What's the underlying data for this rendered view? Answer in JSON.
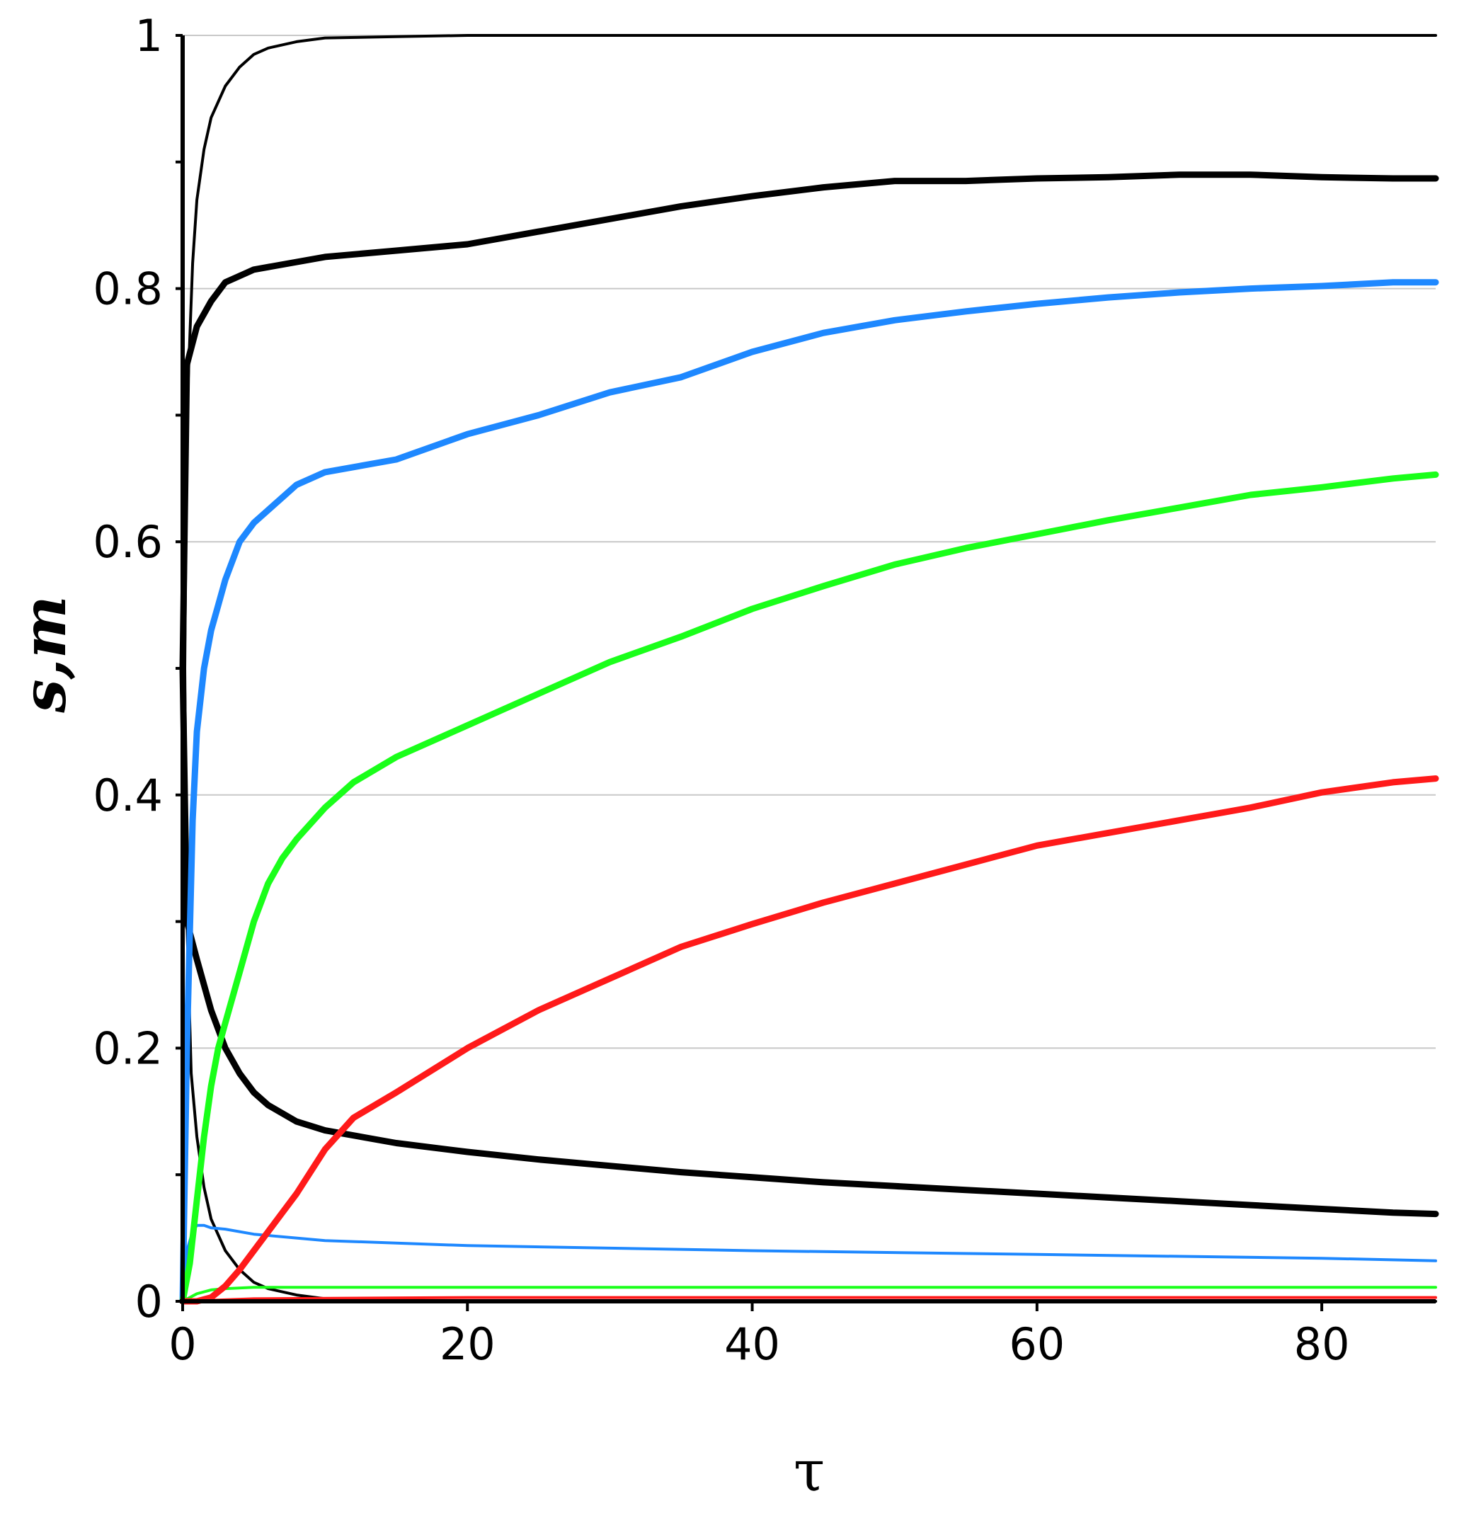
{
  "chart_data": {
    "type": "line",
    "xlabel": "τ",
    "ylabel": "s,m",
    "xlim": [
      0,
      88
    ],
    "ylim": [
      0,
      1
    ],
    "x_ticks": [
      "0",
      "20",
      "40",
      "60",
      "80"
    ],
    "x_tick_values": [
      0,
      20,
      40,
      60,
      80
    ],
    "y_ticks": [
      "0",
      "0.2",
      "0.4",
      "0.6",
      "0.8",
      "1"
    ],
    "y_tick_values": [
      0,
      0.2,
      0.4,
      0.6,
      0.8,
      1
    ],
    "y_minor_ticks": [
      0.1,
      0.3,
      0.5,
      0.7,
      0.9
    ],
    "grid": "horizontal",
    "legend": "none",
    "series": [
      {
        "color": "#000000",
        "weight": "thin",
        "x": [
          0,
          0.3,
          0.7,
          1,
          1.5,
          2,
          3,
          4,
          5,
          6,
          8,
          10,
          15,
          20,
          88
        ],
        "y": [
          0.3,
          0.7,
          0.82,
          0.87,
          0.91,
          0.935,
          0.96,
          0.975,
          0.985,
          0.99,
          0.995,
          0.998,
          0.999,
          1.0,
          1.0
        ]
      },
      {
        "color": "#000000",
        "weight": "thin",
        "x": [
          0,
          0.3,
          0.6,
          1,
          1.5,
          2,
          3,
          4,
          5,
          6,
          8,
          10,
          15,
          20,
          88
        ],
        "y": [
          0.7,
          0.3,
          0.18,
          0.13,
          0.09,
          0.065,
          0.04,
          0.025,
          0.015,
          0.01,
          0.005,
          0.002,
          0.001,
          0.0,
          0.0
        ]
      },
      {
        "color": "#000000",
        "weight": "thick",
        "x": [
          0,
          0.3,
          1,
          2,
          3,
          5,
          10,
          15,
          20,
          25,
          30,
          35,
          40,
          45,
          50,
          55,
          60,
          65,
          70,
          75,
          80,
          85,
          88
        ],
        "y": [
          0.5,
          0.74,
          0.77,
          0.79,
          0.805,
          0.815,
          0.825,
          0.83,
          0.835,
          0.845,
          0.855,
          0.865,
          0.873,
          0.88,
          0.885,
          0.885,
          0.887,
          0.888,
          0.89,
          0.89,
          0.888,
          0.887,
          0.887
        ]
      },
      {
        "color": "#000000",
        "weight": "thick",
        "x": [
          0,
          0.3,
          1,
          2,
          3,
          4,
          5,
          6,
          8,
          10,
          15,
          20,
          25,
          30,
          35,
          40,
          45,
          50,
          55,
          60,
          65,
          70,
          75,
          80,
          85,
          88
        ],
        "y": [
          0.5,
          0.3,
          0.27,
          0.23,
          0.2,
          0.18,
          0.165,
          0.155,
          0.142,
          0.135,
          0.125,
          0.118,
          0.112,
          0.107,
          0.102,
          0.098,
          0.094,
          0.091,
          0.088,
          0.085,
          0.082,
          0.079,
          0.076,
          0.073,
          0.07,
          0.069
        ]
      },
      {
        "color": "#1e88ff",
        "weight": "thick",
        "x": [
          0,
          0.3,
          0.7,
          1,
          1.5,
          2,
          2.5,
          3,
          4,
          5,
          6,
          7,
          8,
          10,
          15,
          20,
          25,
          30,
          35,
          40,
          45,
          50,
          55,
          60,
          65,
          70,
          75,
          80,
          85,
          88
        ],
        "y": [
          0.0,
          0.2,
          0.38,
          0.45,
          0.5,
          0.53,
          0.55,
          0.57,
          0.6,
          0.615,
          0.625,
          0.635,
          0.645,
          0.655,
          0.665,
          0.685,
          0.7,
          0.718,
          0.73,
          0.75,
          0.765,
          0.775,
          0.782,
          0.788,
          0.793,
          0.797,
          0.8,
          0.802,
          0.805,
          0.805
        ]
      },
      {
        "color": "#1e88ff",
        "weight": "thin",
        "x": [
          0,
          0.3,
          0.7,
          1,
          1.5,
          2,
          3,
          5,
          10,
          20,
          40,
          60,
          80,
          88
        ],
        "y": [
          0.0,
          0.04,
          0.055,
          0.06,
          0.06,
          0.058,
          0.057,
          0.053,
          0.048,
          0.044,
          0.04,
          0.037,
          0.034,
          0.032
        ]
      },
      {
        "color": "#1aff1a",
        "weight": "thick",
        "x": [
          0,
          0.5,
          1,
          1.5,
          2,
          2.5,
          3,
          3.5,
          4,
          5,
          6,
          7,
          8,
          10,
          12,
          15,
          20,
          25,
          30,
          35,
          40,
          45,
          50,
          55,
          60,
          65,
          70,
          75,
          80,
          85,
          88
        ],
        "y": [
          0.0,
          0.03,
          0.08,
          0.13,
          0.17,
          0.2,
          0.22,
          0.24,
          0.26,
          0.3,
          0.33,
          0.35,
          0.365,
          0.39,
          0.41,
          0.43,
          0.455,
          0.48,
          0.505,
          0.525,
          0.547,
          0.565,
          0.582,
          0.595,
          0.606,
          0.617,
          0.627,
          0.637,
          0.643,
          0.65,
          0.653
        ]
      },
      {
        "color": "#1aff1a",
        "weight": "thin",
        "x": [
          0,
          1,
          2,
          3,
          5,
          10,
          20,
          40,
          60,
          80,
          88
        ],
        "y": [
          0.0,
          0.006,
          0.009,
          0.01,
          0.011,
          0.011,
          0.011,
          0.011,
          0.011,
          0.011,
          0.011
        ]
      },
      {
        "color": "#ff1a1a",
        "weight": "thick",
        "x": [
          0,
          1,
          2,
          3,
          4,
          5,
          6,
          7,
          8,
          10,
          12,
          15,
          20,
          25,
          30,
          35,
          40,
          45,
          50,
          55,
          60,
          65,
          70,
          75,
          80,
          85,
          88
        ],
        "y": [
          0.0,
          0.0,
          0.003,
          0.012,
          0.025,
          0.04,
          0.055,
          0.07,
          0.085,
          0.12,
          0.145,
          0.165,
          0.2,
          0.23,
          0.255,
          0.28,
          0.298,
          0.315,
          0.33,
          0.345,
          0.36,
          0.37,
          0.38,
          0.39,
          0.402,
          0.41,
          0.413
        ]
      },
      {
        "color": "#ff1a1a",
        "weight": "thin",
        "x": [
          0,
          5,
          20,
          40,
          60,
          80,
          88
        ],
        "y": [
          0.0,
          0.002,
          0.003,
          0.003,
          0.003,
          0.003,
          0.003
        ]
      }
    ]
  }
}
